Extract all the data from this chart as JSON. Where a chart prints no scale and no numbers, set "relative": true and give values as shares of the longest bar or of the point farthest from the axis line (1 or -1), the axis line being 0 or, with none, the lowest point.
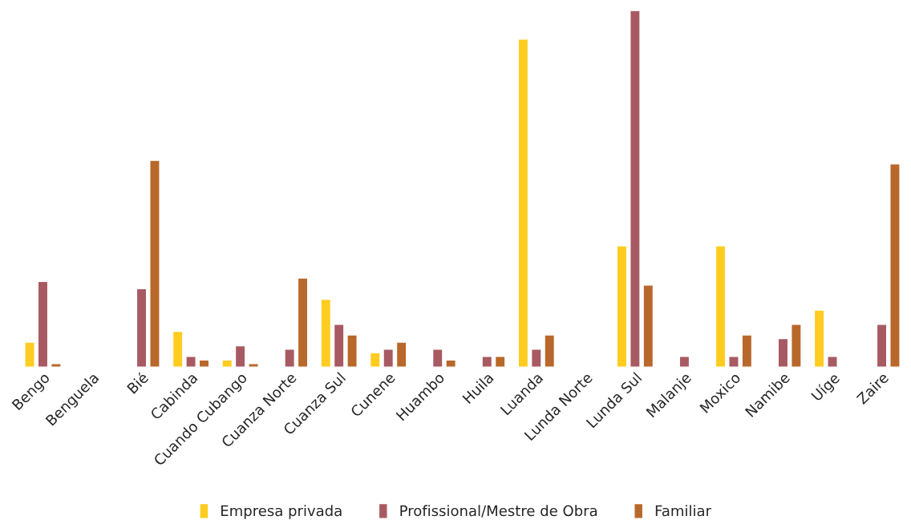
{
  "chart_data": {
    "type": "bar",
    "relative": true,
    "legend": "bottom",
    "categories": [
      "Bengo",
      "Benguela",
      "Bié",
      "Cabinda",
      "Cuando Cubango",
      "Cuanza Norte",
      "Cuanza Sul",
      "Cunene",
      "Huambo",
      "Huila",
      "Luanda",
      "Lunda Norte",
      "Lunda Sul",
      "Malanje",
      "Moxico",
      "Namibe",
      "Uíge",
      "Zaire"
    ],
    "series": [
      {
        "name": "Empresa privada",
        "color": "#ffcc1f",
        "values": [
          0.07,
          null,
          null,
          0.1,
          0.02,
          null,
          0.19,
          0.04,
          null,
          null,
          0.92,
          null,
          0.34,
          null,
          0.34,
          null,
          0.16,
          null
        ]
      },
      {
        "name": "Profissional/Mestre de Obra",
        "color": "#a85a62",
        "values": [
          0.24,
          null,
          0.22,
          0.03,
          0.06,
          0.05,
          0.12,
          0.05,
          0.05,
          0.03,
          0.05,
          null,
          1,
          0.03,
          0.03,
          0.08,
          0.03,
          0.12
        ]
      },
      {
        "name": "Familiar",
        "color": "#b8682a",
        "values": [
          0.01,
          null,
          0.58,
          0.02,
          0.01,
          0.25,
          0.09,
          0.07,
          0.02,
          0.03,
          0.09,
          null,
          0.23,
          null,
          0.09,
          0.12,
          null,
          0.57
        ]
      }
    ]
  }
}
